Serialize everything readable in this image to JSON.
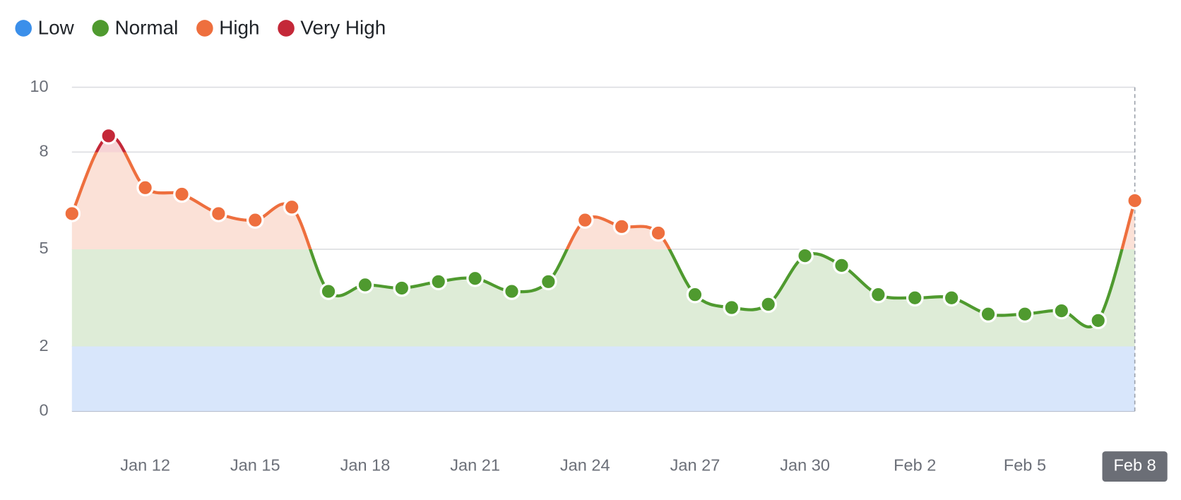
{
  "chart_data": {
    "type": "line",
    "zones": [
      {
        "name": "Low",
        "color": "#3b8fea",
        "fill": "#d8e6fb",
        "to": 2
      },
      {
        "name": "Normal",
        "color": "#4f9a2f",
        "fill": "#deecd7",
        "to": 5
      },
      {
        "name": "High",
        "color": "#ee6f3e",
        "fill": "#fbe1d7",
        "to": 8
      },
      {
        "name": "Very High",
        "color": "#c42838",
        "fill": "#f6d3d5"
      }
    ],
    "categories": [
      null,
      null,
      "Jan 12",
      null,
      null,
      "Jan 15",
      null,
      null,
      "Jan 18",
      null,
      null,
      "Jan 21",
      null,
      null,
      "Jan 24",
      null,
      null,
      "Jan 27",
      null,
      null,
      "Jan 30",
      null,
      null,
      "Feb 2",
      null,
      null,
      "Feb 5",
      null,
      null,
      "Feb 8"
    ],
    "values": [
      6.1,
      8.5,
      6.9,
      6.7,
      6.1,
      5.9,
      6.3,
      3.7,
      3.9,
      3.8,
      4.0,
      4.1,
      3.7,
      4.0,
      5.9,
      5.7,
      5.5,
      3.6,
      3.2,
      3.3,
      4.8,
      4.5,
      3.6,
      3.5,
      3.5,
      3.0,
      3.0,
      3.1,
      2.8,
      6.5
    ],
    "ylim": [
      0,
      10
    ],
    "yticks": [
      0,
      2,
      5,
      8,
      10
    ],
    "grid": true
  }
}
